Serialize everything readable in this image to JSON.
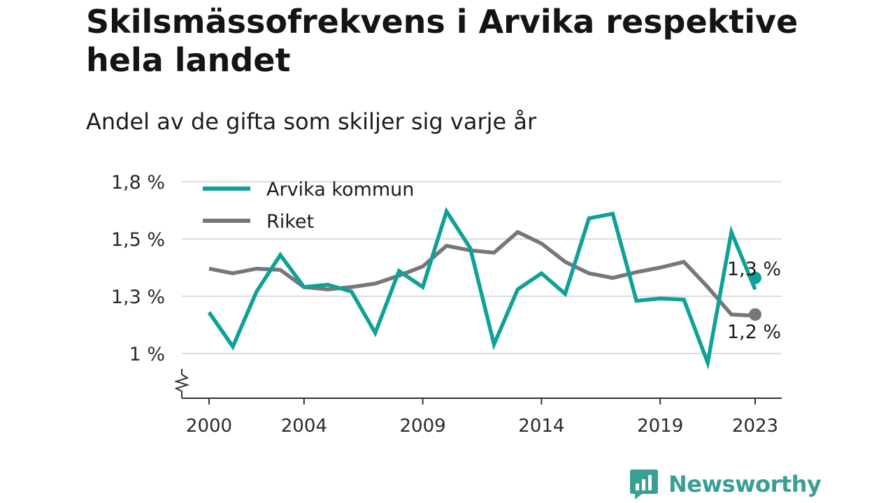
{
  "header": {
    "title": "Skilsmässofrekvens i Arvika respektive hela landet",
    "subtitle": "Andel av de gifta som skiljer sig varje år"
  },
  "brand": {
    "name": "Newsworthy",
    "icon": "newsworthy-logo-icon",
    "color": "#3a9e94"
  },
  "chart_data": {
    "type": "line",
    "x": [
      2000,
      2001,
      2002,
      2003,
      2004,
      2005,
      2006,
      2007,
      2008,
      2009,
      2010,
      2011,
      2012,
      2013,
      2014,
      2015,
      2016,
      2017,
      2018,
      2019,
      2020,
      2021,
      2022,
      2023
    ],
    "x_ticks": [
      2000,
      2004,
      2009,
      2014,
      2019,
      2023
    ],
    "x_tick_labels": [
      "2000",
      "2004",
      "2009",
      "2014",
      "2019",
      "2023"
    ],
    "y_ticks": [
      1.0,
      1.25,
      1.5,
      1.75
    ],
    "y_tick_labels": [
      "1 %",
      "1,3 %",
      "1,5 %",
      "1,8 %"
    ],
    "ylim": [
      0.81,
      1.75
    ],
    "y_axis_break": true,
    "grid": true,
    "legend_position": "top-left",
    "series": [
      {
        "name": "Arvika kommun",
        "color": "#0fa197",
        "values": [
          1.18,
          1.03,
          1.27,
          1.43,
          1.29,
          1.3,
          1.27,
          1.09,
          1.36,
          1.29,
          1.62,
          1.46,
          1.04,
          1.28,
          1.35,
          1.26,
          1.59,
          1.61,
          1.23,
          1.24,
          1.235,
          0.96,
          1.53,
          1.28
        ],
        "end_label": "1,3 %"
      },
      {
        "name": "Riket",
        "color": "#77767c",
        "values": [
          1.37,
          1.35,
          1.37,
          1.365,
          1.29,
          1.28,
          1.29,
          1.305,
          1.34,
          1.38,
          1.47,
          1.45,
          1.44,
          1.53,
          1.48,
          1.4,
          1.35,
          1.33,
          1.355,
          1.375,
          1.4,
          1.29,
          1.17,
          1.165
        ],
        "end_label": "1,2 %"
      }
    ]
  }
}
